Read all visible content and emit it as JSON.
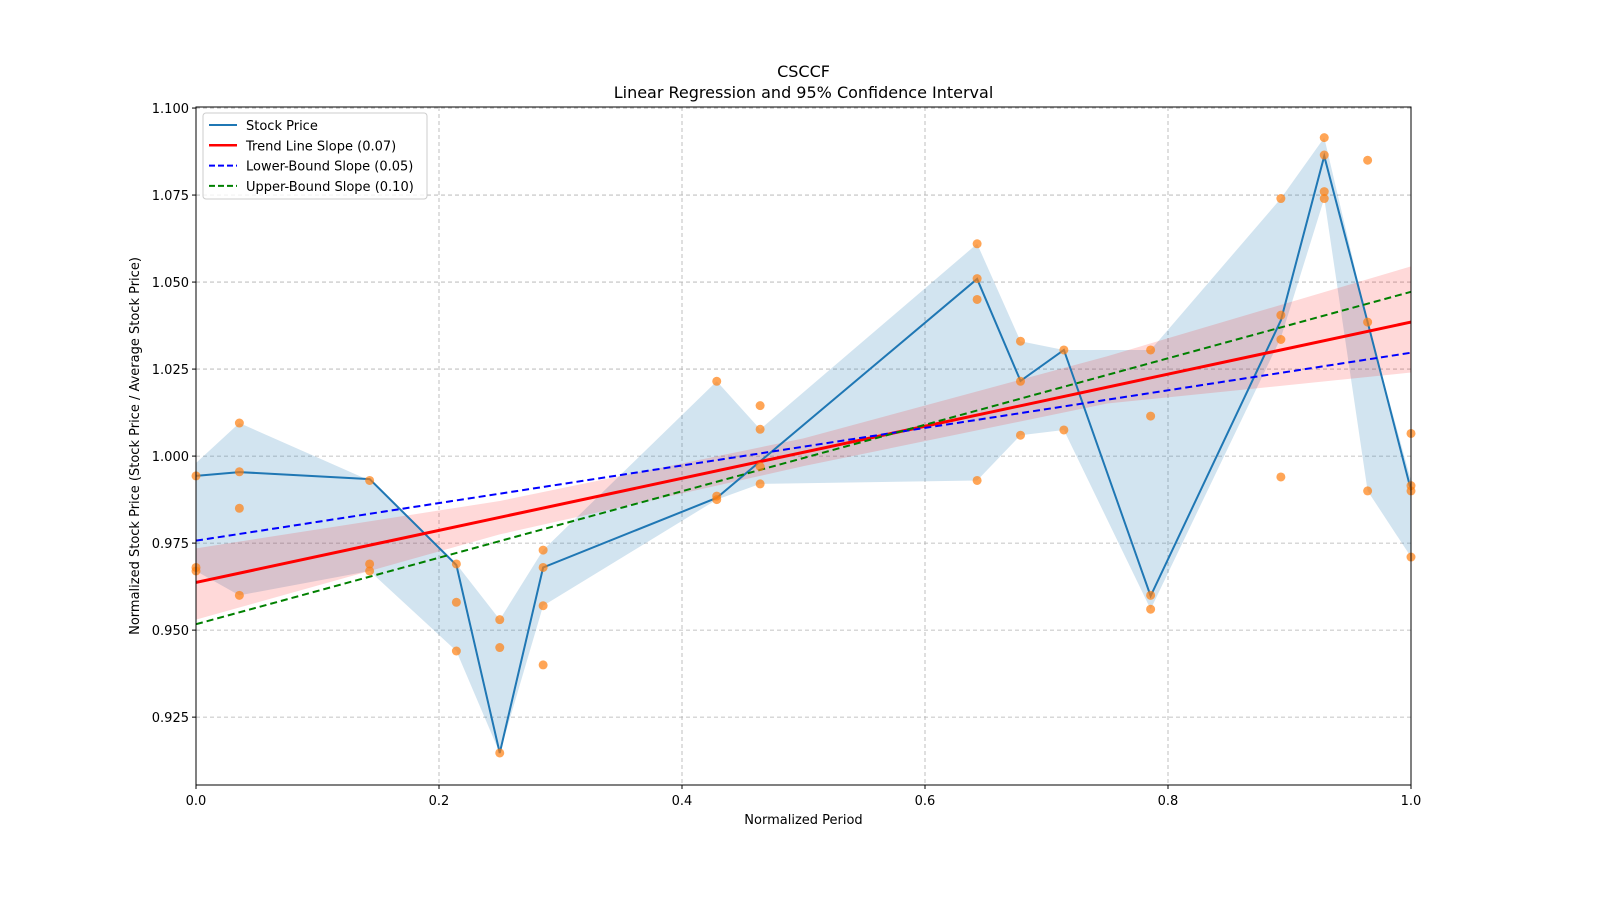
{
  "chart_data": {
    "type": "line",
    "title": "CSCCF",
    "subtitle": "Linear Regression and 95% Confidence Interval",
    "xlabel": "Normalized Period",
    "ylabel": "Normalized Stock Price (Stock Price / Average Stock Price)",
    "xlim": [
      0,
      1
    ],
    "ylim": [
      0.9055,
      1.1003
    ],
    "grid": true,
    "legend_position": "top-left",
    "xticks": [
      "0.0",
      "0.2",
      "0.4",
      "0.6",
      "0.8",
      "1.0"
    ],
    "xtick_values": [
      0,
      0.2,
      0.4,
      0.6,
      0.8,
      1.0
    ],
    "yticks": [
      "0.925",
      "0.950",
      "0.975",
      "1.000",
      "1.025",
      "1.050",
      "1.075",
      "1.100"
    ],
    "ytick_values": [
      0.925,
      0.95,
      0.975,
      1.0,
      1.025,
      1.05,
      1.075,
      1.1
    ],
    "colors": {
      "stock": "#1f77b4",
      "scatter": "#ff7f0e",
      "trend": "#ff0000",
      "lower": "#0000ff",
      "upper": "#008000",
      "band": "#1f77b4",
      "trend_band": "#ff0000"
    },
    "legend": [
      {
        "label": "Stock Price",
        "key": "stock",
        "dash": false
      },
      {
        "label": "Trend Line Slope (0.07)",
        "key": "trend",
        "dash": false
      },
      {
        "label": "Lower-Bound Slope (0.05)",
        "key": "lower",
        "dash": true
      },
      {
        "label": "Upper-Bound Slope (0.10)",
        "key": "upper",
        "dash": true
      }
    ],
    "stock_line": {
      "x": [
        0,
        0.0357,
        0.1429,
        0.2143,
        0.25,
        0.2857,
        0.4286,
        0.6429,
        0.6786,
        0.7143,
        0.7857,
        0.8929,
        0.9286,
        0.9643,
        1.0
      ],
      "y": [
        0.9943,
        0.9954,
        0.9934,
        0.9687,
        0.9147,
        0.968,
        0.988,
        1.0509,
        1.0216,
        1.0305,
        0.9598,
        1.039,
        1.0862,
        1.0385,
        0.9902
      ]
    },
    "stock_band": {
      "x": [
        0,
        0.0357,
        0.1429,
        0.2143,
        0.25,
        0.2857,
        0.4286,
        0.4643,
        0.6429,
        0.6786,
        0.7143,
        0.7857,
        0.8929,
        0.9286,
        0.9643,
        1.0
      ],
      "lower": [
        0.967,
        0.96,
        0.967,
        0.944,
        0.9147,
        0.957,
        0.9875,
        0.992,
        0.993,
        1.006,
        1.0075,
        0.956,
        1.034,
        1.074,
        0.99,
        0.971
      ],
      "upper": [
        0.998,
        1.0095,
        0.993,
        0.969,
        0.953,
        0.973,
        1.0215,
        1.0077,
        1.061,
        1.033,
        1.0305,
        1.0305,
        1.074,
        1.0915,
        1.0385,
        0.993
      ]
    },
    "scatter": {
      "x": [
        0,
        0,
        0,
        0.0357,
        0.0357,
        0.0357,
        0.0357,
        0.1429,
        0.1429,
        0.1429,
        0.2143,
        0.2143,
        0.2143,
        0.25,
        0.25,
        0.25,
        0.2857,
        0.2857,
        0.2857,
        0.2857,
        0.4286,
        0.4286,
        0.4286,
        0.4643,
        0.4643,
        0.4643,
        0.4643,
        0.6429,
        0.6429,
        0.6429,
        0.6429,
        0.6786,
        0.6786,
        0.6786,
        0.7143,
        0.7143,
        0.7857,
        0.7857,
        0.7857,
        0.7857,
        0.8929,
        0.8929,
        0.8929,
        0.8929,
        0.9286,
        0.9286,
        0.9286,
        0.9286,
        0.9643,
        0.9643,
        0.9643,
        1.0,
        1.0,
        1.0,
        1.0
      ],
      "y": [
        0.9943,
        0.968,
        0.967,
        1.0095,
        0.9955,
        0.985,
        0.96,
        0.993,
        0.969,
        0.967,
        0.969,
        0.958,
        0.944,
        0.953,
        0.945,
        0.9147,
        0.973,
        0.968,
        0.957,
        0.94,
        1.0215,
        0.9885,
        0.9875,
        1.0145,
        1.0077,
        0.997,
        0.992,
        1.061,
        1.051,
        1.045,
        0.993,
        1.033,
        1.0215,
        1.006,
        1.0305,
        1.0075,
        1.0305,
        1.0115,
        0.96,
        0.956,
        1.074,
        1.0405,
        1.0335,
        0.994,
        1.0915,
        1.0865,
        1.076,
        1.074,
        1.085,
        1.0385,
        0.99,
        1.0065,
        0.9915,
        0.99,
        0.971
      ]
    },
    "trend_line": {
      "x": [
        0,
        1
      ],
      "y": [
        0.9637,
        1.0385
      ]
    },
    "trend_band": {
      "x": [
        0,
        0.25,
        0.5,
        0.75,
        1.0
      ],
      "lower": [
        0.953,
        0.9775,
        0.9971,
        1.0151,
        1.024
      ],
      "upper": [
        0.9735,
        0.9871,
        1.0051,
        1.0287,
        1.0545
      ]
    },
    "lower_bound_line": {
      "x": [
        0,
        1
      ],
      "y": [
        0.9757,
        1.0297
      ]
    },
    "upper_bound_line": {
      "x": [
        0,
        1
      ],
      "y": [
        0.9517,
        1.0472
      ]
    }
  }
}
